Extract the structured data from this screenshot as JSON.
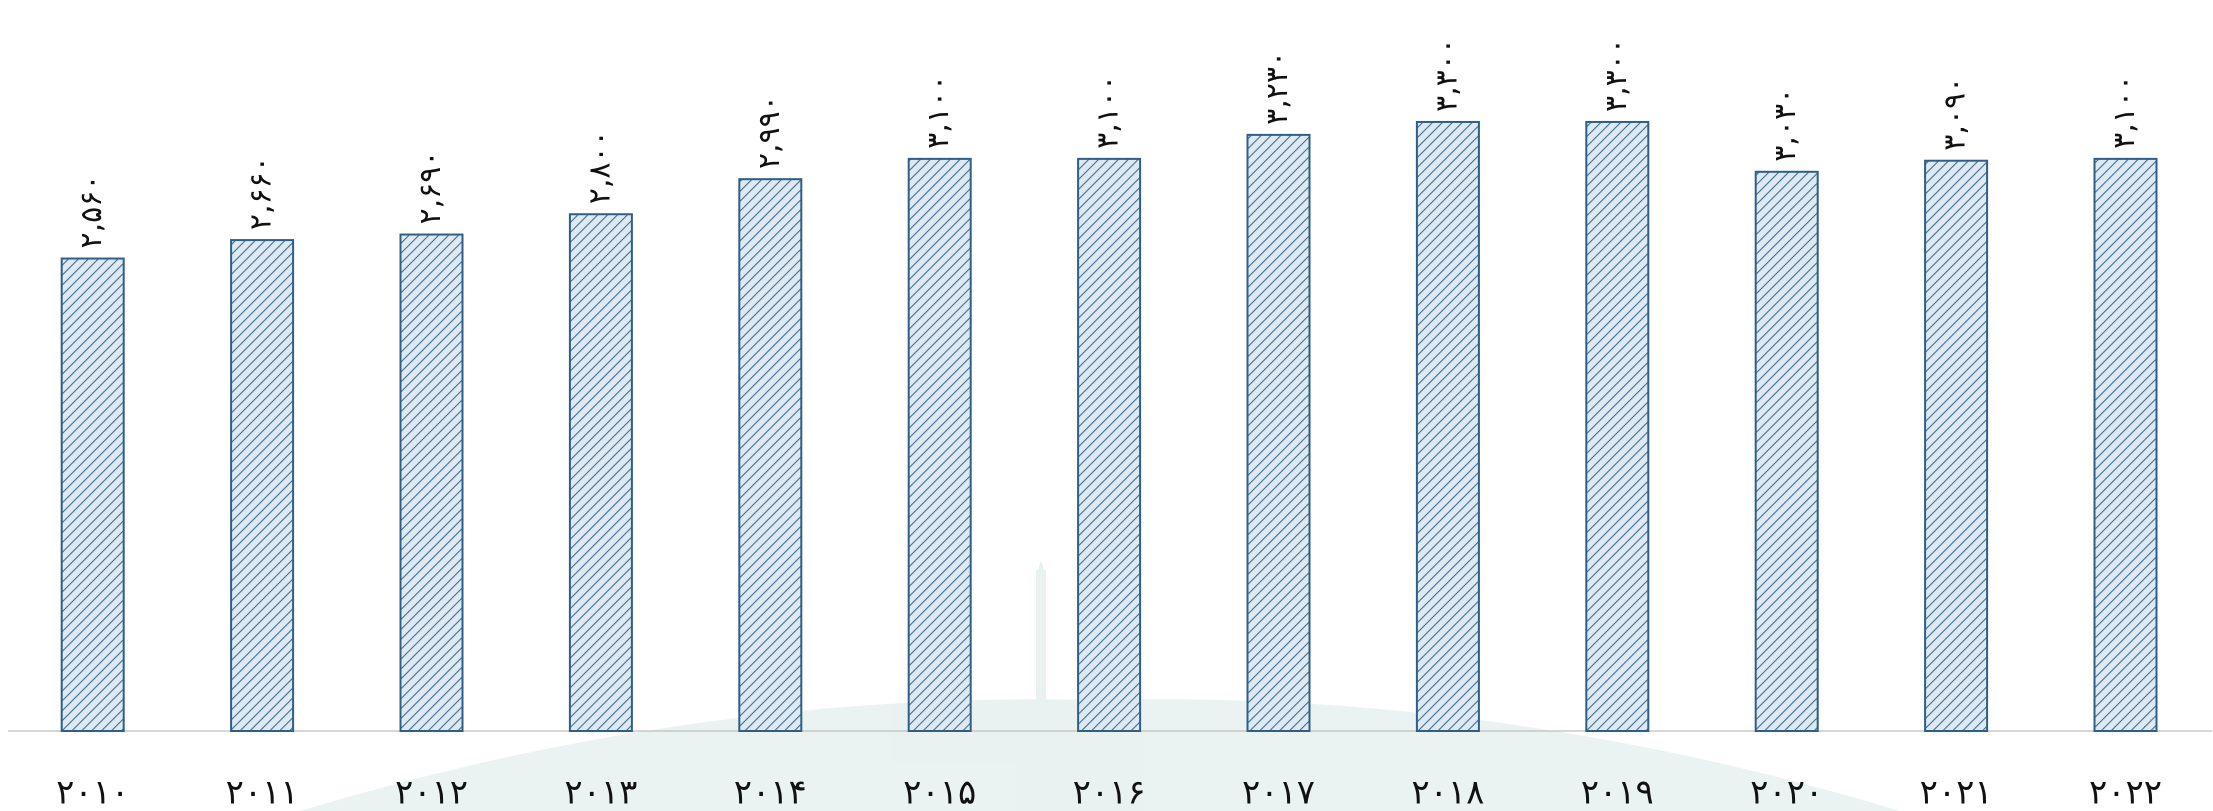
{
  "chart_data": {
    "type": "bar",
    "categories": [
      "۲۰۱۰",
      "۲۰۱۱",
      "۲۰۱۲",
      "۲۰۱۳",
      "۲۰۱۴",
      "۲۰۱۵",
      "۲۰۱۶",
      "۲۰۱۷",
      "۲۰۱۸",
      "۲۰۱۹",
      "۲۰۲۰",
      "۲۰۲۱",
      "۲۰۲۲"
    ],
    "values": [
      2560,
      2660,
      2690,
      2800,
      2990,
      3100,
      3100,
      3230,
      3300,
      3300,
      3030,
      3090,
      3100
    ],
    "value_labels": [
      "۲,۵۶۰",
      "۲,۶۶۰",
      "۲,۶۹۰",
      "۲,۸۰۰",
      "۲,۹۹۰",
      "۳,۱۰۰",
      "۳,۱۰۰",
      "۳,۲۳۰",
      "۳,۳۰۰",
      "۳,۳۰۰",
      "۳,۰۳۰",
      "۳,۰۹۰",
      "۳,۱۰۰"
    ],
    "color": "#2f5f86",
    "ylim": [
      0,
      3950
    ]
  }
}
